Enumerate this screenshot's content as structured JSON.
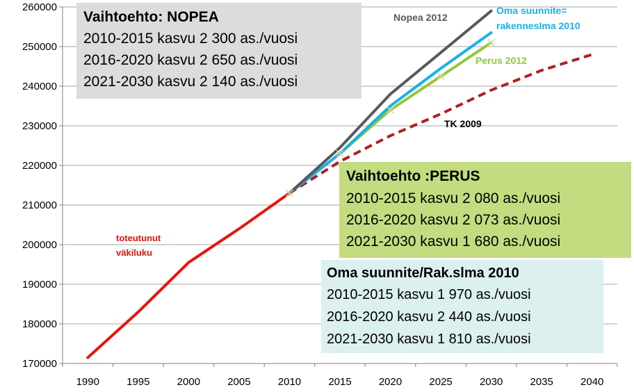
{
  "chart_data": {
    "type": "line",
    "x_ticks": [
      1990,
      1995,
      2000,
      2005,
      2010,
      2015,
      2020,
      2025,
      2030,
      2035,
      2040
    ],
    "xlim": [
      1987.5,
      2042.5
    ],
    "ylim": [
      170000,
      260000
    ],
    "y_ticks": [
      170000,
      180000,
      190000,
      200000,
      210000,
      220000,
      230000,
      240000,
      250000,
      260000
    ],
    "y_tick_labels": [
      "170000",
      "180000",
      "190000",
      "200000",
      "210000",
      "220000",
      "230000",
      "240000",
      "250000",
      "260000"
    ],
    "grid": "horizontal",
    "series": [
      {
        "name": "toteutunut väkiluku",
        "name_lines": [
          "toteutunut",
          "väkiluku"
        ],
        "color": "#e8140a",
        "style": "solid",
        "x": [
          1990,
          1995,
          2000,
          2005,
          2010
        ],
        "y": [
          171500,
          183000,
          195500,
          204000,
          213000
        ]
      },
      {
        "name": "TK 2009",
        "color": "#b01e22",
        "style": "dashed",
        "x": [
          2010,
          2015,
          2020,
          2025,
          2030,
          2035,
          2040
        ],
        "y": [
          213000,
          221000,
          227500,
          233000,
          239000,
          244000,
          248000
        ]
      },
      {
        "name": "Nopea 2012",
        "color": "#595959",
        "style": "solid",
        "x": [
          2010,
          2015,
          2020,
          2025,
          2030
        ],
        "y": [
          213000,
          224500,
          238000,
          248500,
          259000
        ]
      },
      {
        "name": "Oma suunnite= rakennesIma 2010",
        "name_lines": [
          "Oma suunnite=",
          "rakennesIma 2010"
        ],
        "color": "#1ab0e8",
        "style": "solid",
        "x": [
          2010,
          2015,
          2020,
          2025,
          2030
        ],
        "y": [
          213000,
          223000,
          235000,
          244500,
          253500
        ]
      },
      {
        "name": "Perus 2012",
        "color": "#92c83e",
        "style": "solid",
        "x": [
          2010,
          2015,
          2020,
          2025,
          2030
        ],
        "y": [
          213000,
          223000,
          234000,
          242500,
          251000
        ]
      }
    ]
  },
  "boxes": {
    "nopea": {
      "title": "Vaihtoehto: NOPEA",
      "lines": [
        "2010-2015 kasvu 2 300 as./vuosi",
        "2016-2020 kasvu 2 650 as./vuosi",
        "2021-2030 kasvu 2 140 as./vuosi"
      ],
      "background": "#dcdcdc"
    },
    "perus": {
      "title": "Vaihtoehto :PERUS",
      "lines": [
        "2010-2015 kasvu 2 080 as./vuosi",
        "2016-2020 kasvu 2 073 as./vuosi",
        "2021-2030 kasvu 1 680 as./vuosi"
      ],
      "background": "#c3dc80"
    },
    "oma": {
      "title": "Oma suunnite/Rak.slma 2010",
      "lines": [
        "2010-2015 kasvu 1 970 as./vuosi",
        "2016-2020 kasvu 2 440 as./vuosi",
        "2021-2030 kasvu 1 810 as./vuosi"
      ],
      "background": "#dcf0f0"
    }
  }
}
